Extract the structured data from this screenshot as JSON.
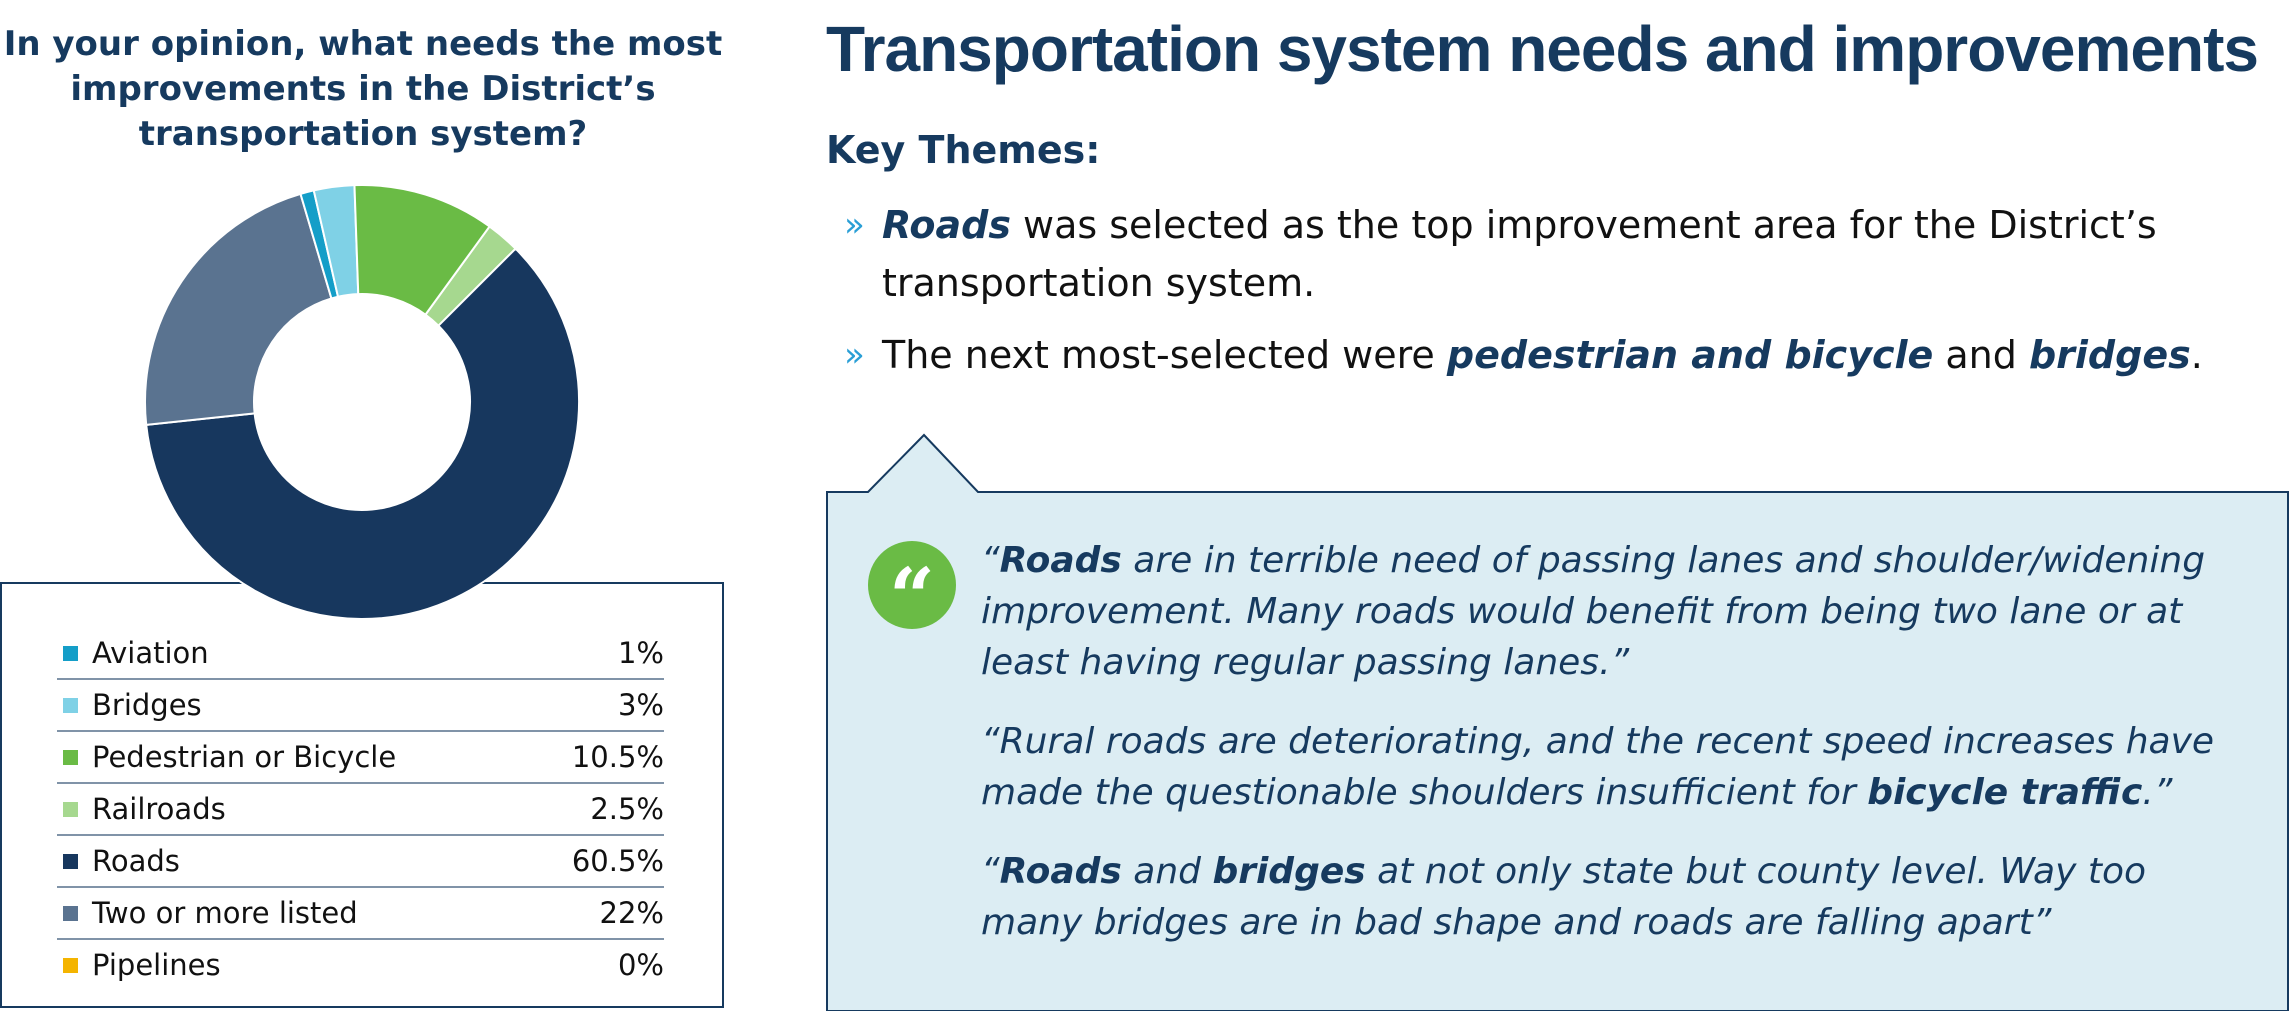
{
  "chart_data": {
    "type": "pie",
    "title": "In your opinion, what needs the most improvements in the District’s transportation system?",
    "categories": [
      "Aviation",
      "Bridges",
      "Pedestrian or Bicycle",
      "Railroads",
      "Roads",
      "Two or more listed",
      "Pipelines"
    ],
    "values": [
      1,
      3,
      10.5,
      2.5,
      60.5,
      22,
      0
    ],
    "value_labels": [
      "1%",
      "3%",
      "10.5%",
      "2.5%",
      "60.5%",
      "22%",
      "0%"
    ],
    "colors": [
      "#149ec8",
      "#7fd1e6",
      "#6abb45",
      "#a6d88f",
      "#17375e",
      "#5a7390",
      "#f4b400"
    ],
    "unit": "%",
    "legend_placement": "bottom"
  },
  "page": {
    "title": "Transportation system needs and improvements",
    "themes_heading": "Key Themes:",
    "bullet_glyph": "»",
    "themes": [
      {
        "a": "Roads",
        "b": " was selected as the top improvement area for the District’s transportation system."
      },
      {
        "a": "The next most-selected were ",
        "b": "pedestrian and bicycle",
        "c": " and ",
        "d": "bridges",
        "e": "."
      }
    ],
    "quote_icon": "“",
    "quotes": [
      {
        "a": "“",
        "b": "Roads",
        "c": " are in terrible need of passing lanes and shoulder/widening improvement. Many roads would benefit from being two lane or at least having regular passing lanes.”"
      },
      {
        "a": "“Rural roads are deteriorating, and the recent speed increases have made the questionable shoulders insufficient for ",
        "b": "bicycle traffic",
        "c": ".”"
      },
      {
        "a": "“",
        "b": "Roads",
        "c": " and ",
        "d": "bridges",
        "e": " at not only state but county level. Way too many bridges are in bad shape and roads are falling apart”"
      }
    ],
    "colors": {
      "navy": "#163a5f",
      "quote_box_fill": "#dcedf3",
      "quote_icon_bg": "#6abb45",
      "bullet": "#2a9fd6"
    }
  }
}
